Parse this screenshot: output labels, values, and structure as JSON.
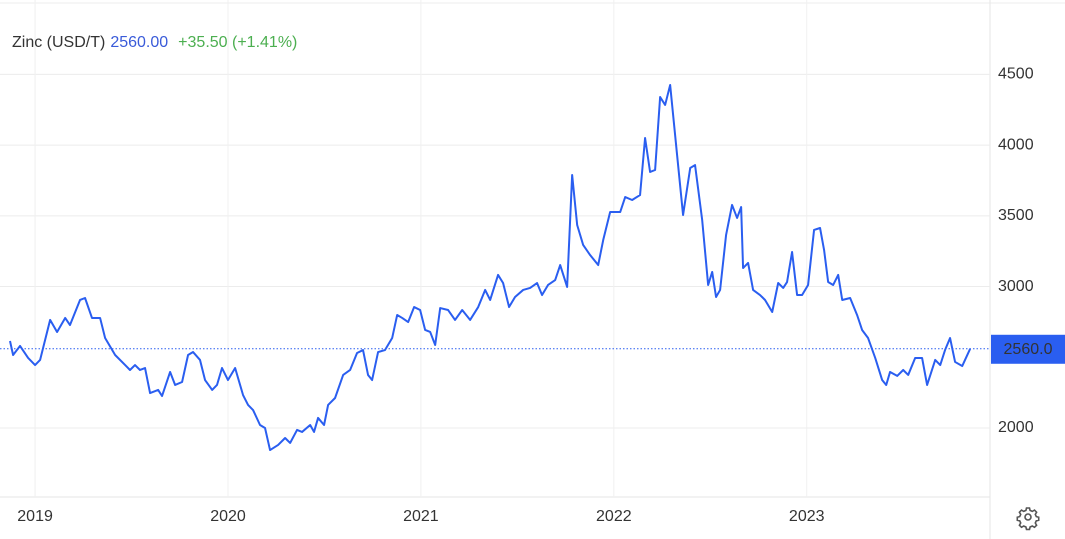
{
  "chart_data": {
    "type": "line",
    "title": "Zinc (USD/T)",
    "price": "2560.00",
    "change": "+35.50 (+1.41%)",
    "price_line": {
      "value": 2560,
      "label": "2560.0"
    },
    "xlim": [
      2018.87,
      2023.95
    ],
    "xticks": [
      2019,
      2020,
      2021,
      2022,
      2023
    ],
    "ylim": [
      1512,
      5026
    ],
    "yticks": [
      2000,
      3000,
      3500,
      4000,
      4500
    ],
    "grid": true,
    "series": [
      {
        "name": "Zinc (USD/T)",
        "color": "#2a5ef0",
        "x": [
          2018.87,
          2018.886,
          2018.922,
          2018.964,
          2019.0,
          2019.026,
          2019.078,
          2019.114,
          2019.156,
          2019.181,
          2019.233,
          2019.259,
          2019.295,
          2019.337,
          2019.363,
          2019.415,
          2019.467,
          2019.492,
          2019.518,
          2019.544,
          2019.57,
          2019.596,
          2019.638,
          2019.658,
          2019.7,
          2019.726,
          2019.762,
          2019.793,
          2019.819,
          2019.855,
          2019.881,
          2019.918,
          2019.943,
          2019.969,
          2020.0,
          2020.037,
          2020.078,
          2020.104,
          2020.13,
          2020.166,
          2020.192,
          2020.218,
          2020.26,
          2020.296,
          2020.322,
          2020.358,
          2020.384,
          2020.426,
          2020.446,
          2020.467,
          2020.498,
          2020.519,
          2020.555,
          2020.597,
          2020.633,
          2020.669,
          2020.7,
          2020.726,
          2020.747,
          2020.778,
          2020.814,
          2020.851,
          2020.877,
          2020.903,
          2020.934,
          2020.965,
          2020.996,
          2021.022,
          2021.048,
          2021.074,
          2021.1,
          2021.141,
          2021.177,
          2021.214,
          2021.255,
          2021.297,
          2021.333,
          2021.359,
          2021.4,
          2021.426,
          2021.457,
          2021.488,
          2021.53,
          2021.566,
          2021.602,
          2021.628,
          2021.659,
          2021.696,
          2021.722,
          2021.758,
          2021.784,
          2021.81,
          2021.841,
          2021.877,
          2021.919,
          2021.945,
          2021.981,
          2022.033,
          2022.059,
          2022.095,
          2022.136,
          2022.162,
          2022.188,
          2022.214,
          2022.24,
          2022.266,
          2022.292,
          2022.328,
          2022.359,
          2022.396,
          2022.421,
          2022.458,
          2022.489,
          2022.51,
          2022.53,
          2022.551,
          2022.582,
          2022.613,
          2022.639,
          2022.66,
          2022.67,
          2022.696,
          2022.722,
          2022.758,
          2022.784,
          2022.821,
          2022.852,
          2022.878,
          2022.898,
          2022.924,
          2022.95,
          2022.976,
          2023.007,
          2023.038,
          2023.069,
          2023.09,
          2023.111,
          2023.137,
          2023.163,
          2023.184,
          2023.225,
          2023.261,
          2023.287,
          2023.318,
          2023.355,
          2023.391,
          2023.412,
          2023.432,
          2023.469,
          2023.5,
          2023.526,
          2023.562,
          2023.598,
          2023.624,
          2023.666,
          2023.692,
          2023.717,
          2023.743,
          2023.769,
          2023.806,
          2023.847
        ],
        "values": [
          2615,
          2516,
          2580,
          2495,
          2445,
          2481,
          2764,
          2679,
          2778,
          2728,
          2905,
          2919,
          2778,
          2778,
          2636,
          2516,
          2445,
          2410,
          2445,
          2410,
          2424,
          2247,
          2269,
          2226,
          2396,
          2304,
          2325,
          2516,
          2537,
          2481,
          2339,
          2269,
          2304,
          2424,
          2339,
          2424,
          2233,
          2163,
          2127,
          2021,
          2000,
          1844,
          1880,
          1929,
          1894,
          1986,
          1972,
          2021,
          1972,
          2071,
          2021,
          2163,
          2212,
          2375,
          2410,
          2530,
          2551,
          2375,
          2339,
          2537,
          2551,
          2636,
          2799,
          2778,
          2749,
          2855,
          2834,
          2693,
          2679,
          2587,
          2848,
          2834,
          2764,
          2834,
          2764,
          2855,
          2976,
          2905,
          3082,
          3025,
          2855,
          2926,
          2976,
          2990,
          3025,
          2940,
          3011,
          3046,
          3152,
          2997,
          3789,
          3435,
          3294,
          3223,
          3152,
          3329,
          3527,
          3527,
          3633,
          3612,
          3647,
          4050,
          3810,
          3824,
          4340,
          4284,
          4425,
          3930,
          3506,
          3838,
          3859,
          3471,
          3011,
          3103,
          2926,
          2976,
          3365,
          3577,
          3485,
          3562,
          3131,
          3167,
          2976,
          2940,
          2905,
          2820,
          3025,
          2990,
          3032,
          3244,
          2940,
          2940,
          3011,
          3400,
          3414,
          3258,
          3032,
          3011,
          3082,
          2905,
          2919,
          2799,
          2693,
          2636,
          2495,
          2339,
          2304,
          2396,
          2368,
          2410,
          2375,
          2495,
          2495,
          2304,
          2481,
          2445,
          2551,
          2636,
          2467,
          2438,
          2560
        ]
      }
    ]
  }
}
